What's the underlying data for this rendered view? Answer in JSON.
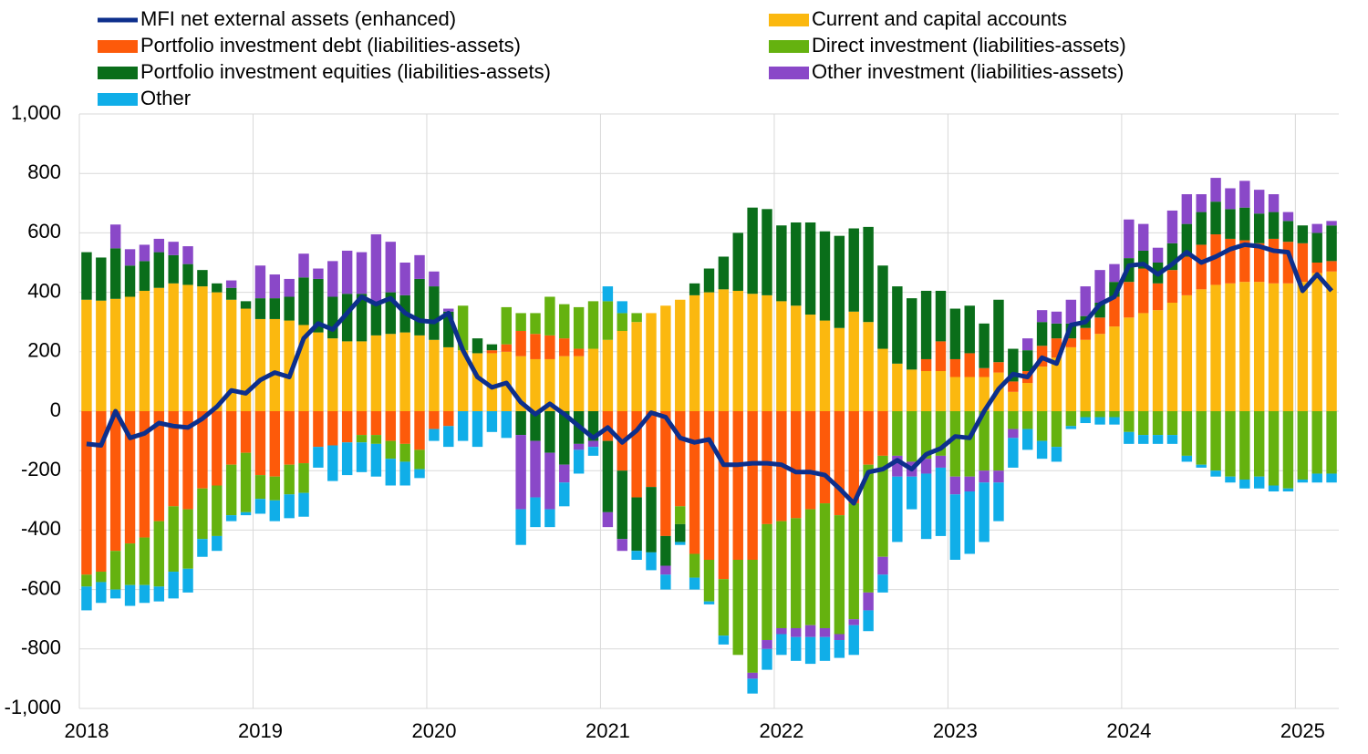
{
  "chart_data": {
    "type": "bar",
    "categories": [
      "2018",
      null,
      null,
      null,
      null,
      null,
      null,
      null,
      null,
      null,
      null,
      null,
      "2019",
      null,
      null,
      null,
      null,
      null,
      null,
      null,
      null,
      null,
      null,
      null,
      "2020",
      null,
      null,
      null,
      null,
      null,
      null,
      null,
      null,
      null,
      null,
      null,
      "2021",
      null,
      null,
      null,
      null,
      null,
      null,
      null,
      null,
      null,
      null,
      null,
      "2022",
      null,
      null,
      null,
      null,
      null,
      null,
      null,
      null,
      null,
      null,
      null,
      "2023",
      null,
      null,
      null,
      null,
      null,
      null,
      null,
      null,
      null,
      null,
      null,
      "2024",
      null,
      null,
      null,
      null,
      null,
      null,
      null,
      null,
      null,
      null,
      null,
      "2025",
      null,
      null
    ],
    "series": [
      {
        "name": "MFI net external assets (enhanced)",
        "type": "line",
        "color": "#0d2f8c",
        "values": [
          -110,
          -115,
          0,
          -90,
          -75,
          -40,
          -50,
          -55,
          -25,
          15,
          70,
          60,
          105,
          130,
          115,
          245,
          295,
          275,
          330,
          385,
          360,
          380,
          330,
          305,
          300,
          330,
          205,
          115,
          80,
          95,
          30,
          -10,
          25,
          -10,
          -50,
          -90,
          -55,
          -105,
          -65,
          -5,
          -20,
          -90,
          -105,
          -95,
          -180,
          -180,
          -175,
          -175,
          -180,
          -205,
          -205,
          -215,
          -260,
          -310,
          -205,
          -195,
          -165,
          -195,
          -145,
          -125,
          -85,
          -90,
          0,
          75,
          125,
          115,
          180,
          160,
          290,
          300,
          360,
          385,
          490,
          495,
          460,
          495,
          535,
          500,
          520,
          545,
          560,
          555,
          540,
          535,
          405,
          460,
          405
        ]
      },
      {
        "name": "Current and capital accounts",
        "color": "#fbb80f",
        "values": [
          375,
          372,
          378,
          385,
          405,
          415,
          430,
          425,
          420,
          400,
          375,
          345,
          310,
          310,
          305,
          290,
          265,
          245,
          235,
          235,
          255,
          260,
          265,
          255,
          240,
          215,
          205,
          195,
          195,
          200,
          185,
          175,
          175,
          185,
          185,
          210,
          240,
          270,
          300,
          330,
          355,
          375,
          390,
          400,
          410,
          405,
          395,
          390,
          370,
          355,
          325,
          305,
          280,
          335,
          300,
          210,
          160,
          140,
          135,
          135,
          115,
          115,
          115,
          130,
          65,
          95,
          150,
          180,
          215,
          240,
          260,
          285,
          315,
          330,
          340,
          365,
          390,
          410,
          425,
          430,
          435,
          435,
          430,
          430,
          435,
          465,
          470
        ]
      },
      {
        "name": "Portfolio investment debt (liabilities-assets)",
        "color": "#fd5a0a",
        "values": [
          -550,
          -540,
          -470,
          -445,
          -425,
          -370,
          -320,
          -330,
          -260,
          -250,
          -180,
          -140,
          -215,
          -220,
          -180,
          -175,
          -120,
          -115,
          -105,
          -80,
          -80,
          -100,
          -110,
          -130,
          -60,
          -50,
          0,
          0,
          10,
          25,
          85,
          85,
          80,
          60,
          25,
          0,
          -100,
          -200,
          -290,
          -255,
          -420,
          -320,
          -480,
          -500,
          -565,
          -500,
          -500,
          -380,
          -370,
          -360,
          -330,
          -310,
          -350,
          -310,
          -180,
          -150,
          0,
          0,
          40,
          100,
          60,
          80,
          30,
          35,
          35,
          40,
          70,
          65,
          30,
          40,
          55,
          100,
          120,
          150,
          90,
          110,
          130,
          150,
          170,
          150,
          140,
          130,
          150,
          140,
          130,
          35,
          35
        ]
      },
      {
        "name": "Direct investment (liabilities-assets)",
        "color": "#65b20f",
        "values": [
          -40,
          -35,
          -130,
          -140,
          -160,
          -220,
          -220,
          -200,
          -170,
          -170,
          -170,
          -200,
          -80,
          -80,
          -100,
          -100,
          0,
          0,
          0,
          -25,
          -30,
          -60,
          -60,
          -65,
          0,
          0,
          150,
          0,
          0,
          125,
          60,
          70,
          130,
          115,
          140,
          160,
          130,
          60,
          30,
          0,
          0,
          -60,
          -80,
          -140,
          -190,
          -320,
          -380,
          -390,
          -360,
          -370,
          -390,
          -420,
          -400,
          -390,
          -430,
          -340,
          -150,
          -170,
          -160,
          -150,
          -220,
          -220,
          -200,
          -200,
          -60,
          -60,
          -100,
          -120,
          -50,
          -20,
          -20,
          -20,
          -70,
          -80,
          -80,
          -80,
          -150,
          -180,
          -200,
          -220,
          -230,
          -220,
          -250,
          -260,
          -230,
          -210,
          -210
        ]
      },
      {
        "name": "Portfolio investment equities (liabilities-assets)",
        "color": "#0a6e1a",
        "values": [
          160,
          145,
          170,
          105,
          100,
          120,
          95,
          70,
          55,
          30,
          40,
          25,
          70,
          70,
          80,
          160,
          180,
          140,
          160,
          160,
          110,
          140,
          125,
          190,
          180,
          120,
          0,
          50,
          20,
          0,
          -80,
          -100,
          -140,
          -180,
          -110,
          -100,
          -240,
          -230,
          -180,
          -220,
          -100,
          -60,
          40,
          80,
          110,
          195,
          290,
          290,
          255,
          280,
          310,
          300,
          310,
          280,
          320,
          280,
          260,
          240,
          230,
          170,
          170,
          160,
          150,
          210,
          110,
          70,
          80,
          50,
          50,
          40,
          50,
          50,
          80,
          60,
          70,
          90,
          110,
          110,
          110,
          100,
          110,
          100,
          90,
          70,
          60,
          100,
          120
        ]
      },
      {
        "name": "Other investment (liabilities-assets)",
        "color": "#8a48c8",
        "values": [
          0,
          0,
          80,
          55,
          55,
          45,
          45,
          60,
          0,
          0,
          25,
          0,
          110,
          80,
          60,
          80,
          35,
          120,
          145,
          140,
          230,
          170,
          110,
          80,
          50,
          10,
          0,
          0,
          0,
          0,
          -250,
          -190,
          -190,
          -60,
          -20,
          -20,
          -50,
          -40,
          0,
          0,
          -30,
          0,
          0,
          0,
          0,
          0,
          -20,
          -30,
          -20,
          -30,
          -40,
          -30,
          -20,
          -20,
          -60,
          -60,
          -70,
          -50,
          -50,
          -40,
          -60,
          -50,
          -40,
          -40,
          -30,
          40,
          40,
          40,
          80,
          100,
          110,
          60,
          130,
          90,
          50,
          110,
          100,
          60,
          80,
          70,
          90,
          80,
          60,
          30,
          0,
          30,
          15
        ]
      },
      {
        "name": "Other",
        "color": "#10aee8",
        "values": [
          -80,
          -70,
          -30,
          -70,
          -60,
          -50,
          -90,
          -80,
          -60,
          -50,
          -20,
          -10,
          -50,
          -70,
          -80,
          -80,
          -70,
          -120,
          -110,
          -100,
          -110,
          -90,
          -80,
          -30,
          -40,
          -70,
          -100,
          -120,
          -70,
          -90,
          -120,
          -100,
          -60,
          -80,
          -80,
          -30,
          50,
          40,
          -30,
          -60,
          -50,
          -10,
          -40,
          -10,
          -30,
          0,
          -50,
          -70,
          -70,
          -80,
          -90,
          -80,
          -60,
          -100,
          -70,
          -60,
          -220,
          -110,
          -220,
          -230,
          -220,
          -210,
          -200,
          -130,
          -100,
          -70,
          -60,
          -50,
          -10,
          -20,
          -25,
          -25,
          -40,
          -30,
          -30,
          -30,
          -20,
          -10,
          -20,
          -20,
          -30,
          -40,
          -20,
          -10,
          -10,
          -30,
          -30
        ]
      }
    ],
    "ylim": [
      -1000,
      1000
    ],
    "yticks": [
      {
        "value": -1000,
        "label": "-1,000"
      },
      -800,
      -600,
      -400,
      -200,
      0,
      200,
      400,
      600,
      800,
      {
        "value": 1000,
        "label": "1,000"
      }
    ],
    "grid": true,
    "stacked": true
  }
}
